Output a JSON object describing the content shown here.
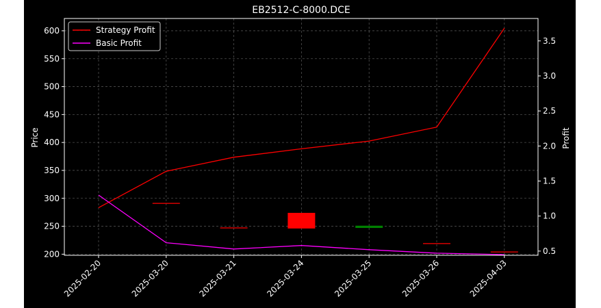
{
  "chart_data": {
    "type": "line",
    "title": "EB2512-C-8000.DCE",
    "ylabel_left": "Price",
    "ylabel_right": "Profit",
    "categories": [
      "2025-02-20",
      "2025-03-20",
      "2025-03-21",
      "2025-03-24",
      "2025-03-25",
      "2025-03-26",
      "2025-04-03"
    ],
    "ylim_left": [
      198,
      622
    ],
    "ylim_right": [
      0.44,
      3.82
    ],
    "yticks_left": [
      200,
      250,
      300,
      350,
      400,
      450,
      500,
      550,
      600
    ],
    "yticks_right": [
      0.5,
      1.0,
      1.5,
      2.0,
      2.5,
      3.0,
      3.5
    ],
    "grid": true,
    "legend_position": "upper-left",
    "candles": [
      {
        "date": "2025-03-20",
        "open": 291,
        "close": 291,
        "color": "#ff0000"
      },
      {
        "date": "2025-03-21",
        "open": 247,
        "close": 247,
        "color": "#ff0000"
      },
      {
        "date": "2025-03-24",
        "open": 274,
        "close": 246,
        "color": "#ff0000"
      },
      {
        "date": "2025-03-25",
        "open": 251,
        "close": 247,
        "color": "#008000"
      },
      {
        "date": "2025-03-26",
        "open": 219,
        "close": 219,
        "color": "#ff0000"
      },
      {
        "date": "2025-04-03",
        "open": 204,
        "close": 204,
        "color": "#ff0000"
      }
    ],
    "series": [
      {
        "name": "Strategy Profit",
        "axis": "right",
        "color": "#ff0000",
        "values": [
          1.12,
          1.64,
          1.84,
          1.96,
          2.07,
          2.27,
          3.68
        ]
      },
      {
        "name": "Basic Profit",
        "axis": "right",
        "color": "#ff00ff",
        "values": [
          1.3,
          0.62,
          0.53,
          0.58,
          0.52,
          0.47,
          0.45
        ]
      }
    ]
  }
}
